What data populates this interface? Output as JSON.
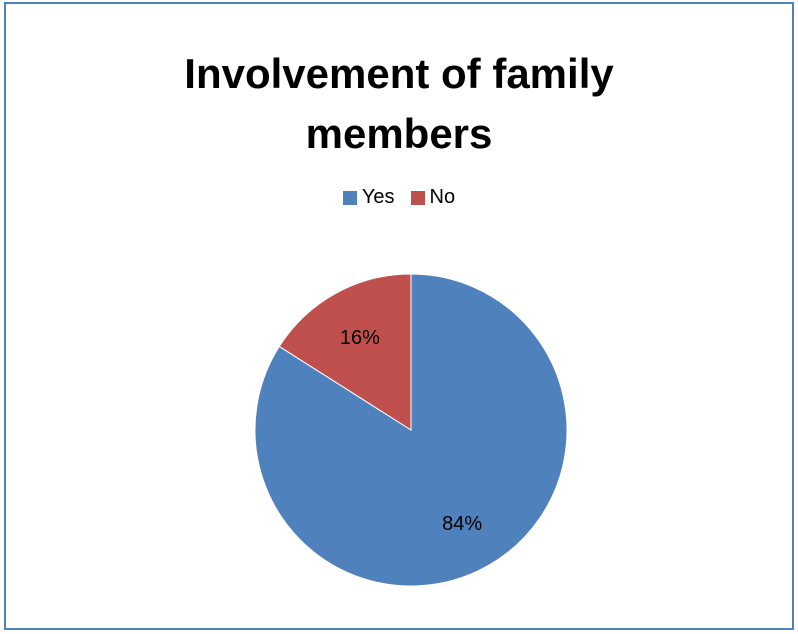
{
  "chart_data": {
    "type": "pie",
    "title": "Involvement of family members",
    "title_lines": [
      "Involvement of family",
      "members"
    ],
    "categories": [
      "Yes",
      "No"
    ],
    "values": [
      84,
      16
    ],
    "labels": [
      "84%",
      "16%"
    ],
    "colors": [
      "#4f81bd",
      "#c0504d"
    ],
    "legend_position": "top"
  }
}
